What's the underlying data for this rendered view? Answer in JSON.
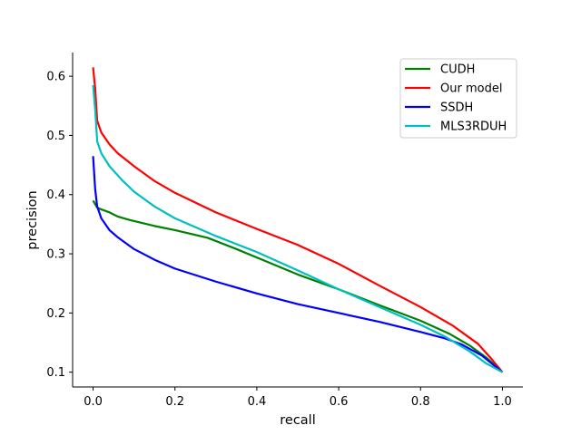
{
  "chart_data": {
    "type": "line",
    "xlabel": "recall",
    "ylabel": "precision",
    "xlim": [
      -0.05,
      1.05
    ],
    "ylim": [
      0.075,
      0.64
    ],
    "x_ticks": [
      0.0,
      0.2,
      0.4,
      0.6,
      0.8,
      1.0
    ],
    "x_tick_labels": [
      "0.0",
      "0.2",
      "0.4",
      "0.6",
      "0.8",
      "1.0"
    ],
    "y_ticks": [
      0.1,
      0.2,
      0.3,
      0.4,
      0.5,
      0.6
    ],
    "y_tick_labels": [
      "0.1",
      "0.2",
      "0.3",
      "0.4",
      "0.5",
      "0.6"
    ],
    "grid": false,
    "legend_position": "top-right",
    "series": [
      {
        "name": "CUDH",
        "color": "#008000",
        "points": [
          [
            0.0,
            0.39
          ],
          [
            0.01,
            0.378
          ],
          [
            0.02,
            0.375
          ],
          [
            0.04,
            0.37
          ],
          [
            0.06,
            0.363
          ],
          [
            0.09,
            0.357
          ],
          [
            0.15,
            0.347
          ],
          [
            0.2,
            0.34
          ],
          [
            0.28,
            0.327
          ],
          [
            0.35,
            0.308
          ],
          [
            0.42,
            0.288
          ],
          [
            0.5,
            0.265
          ],
          [
            0.6,
            0.24
          ],
          [
            0.7,
            0.213
          ],
          [
            0.8,
            0.187
          ],
          [
            0.87,
            0.165
          ],
          [
            0.92,
            0.145
          ],
          [
            0.96,
            0.125
          ],
          [
            1.0,
            0.1
          ]
        ]
      },
      {
        "name": "Our model",
        "color": "#ff0000",
        "points": [
          [
            0.0,
            0.615
          ],
          [
            0.005,
            0.58
          ],
          [
            0.01,
            0.525
          ],
          [
            0.02,
            0.505
          ],
          [
            0.04,
            0.485
          ],
          [
            0.06,
            0.47
          ],
          [
            0.1,
            0.448
          ],
          [
            0.15,
            0.423
          ],
          [
            0.2,
            0.403
          ],
          [
            0.3,
            0.37
          ],
          [
            0.4,
            0.342
          ],
          [
            0.5,
            0.315
          ],
          [
            0.6,
            0.283
          ],
          [
            0.7,
            0.246
          ],
          [
            0.8,
            0.21
          ],
          [
            0.88,
            0.178
          ],
          [
            0.94,
            0.148
          ],
          [
            0.97,
            0.125
          ],
          [
            1.0,
            0.1
          ]
        ]
      },
      {
        "name": "SSDH",
        "color": "#0000ff",
        "points": [
          [
            0.0,
            0.465
          ],
          [
            0.005,
            0.41
          ],
          [
            0.01,
            0.38
          ],
          [
            0.02,
            0.36
          ],
          [
            0.04,
            0.34
          ],
          [
            0.06,
            0.328
          ],
          [
            0.1,
            0.308
          ],
          [
            0.15,
            0.29
          ],
          [
            0.2,
            0.275
          ],
          [
            0.3,
            0.253
          ],
          [
            0.4,
            0.233
          ],
          [
            0.5,
            0.215
          ],
          [
            0.6,
            0.2
          ],
          [
            0.7,
            0.185
          ],
          [
            0.8,
            0.168
          ],
          [
            0.86,
            0.157
          ],
          [
            0.9,
            0.147
          ],
          [
            0.95,
            0.128
          ],
          [
            1.0,
            0.1
          ]
        ]
      },
      {
        "name": "MLS3RDUH",
        "color": "#00bfbf",
        "points": [
          [
            0.0,
            0.585
          ],
          [
            0.005,
            0.545
          ],
          [
            0.01,
            0.49
          ],
          [
            0.02,
            0.47
          ],
          [
            0.04,
            0.448
          ],
          [
            0.07,
            0.425
          ],
          [
            0.1,
            0.405
          ],
          [
            0.15,
            0.38
          ],
          [
            0.2,
            0.36
          ],
          [
            0.3,
            0.33
          ],
          [
            0.4,
            0.303
          ],
          [
            0.5,
            0.272
          ],
          [
            0.6,
            0.24
          ],
          [
            0.7,
            0.21
          ],
          [
            0.8,
            0.18
          ],
          [
            0.86,
            0.16
          ],
          [
            0.92,
            0.135
          ],
          [
            0.96,
            0.115
          ],
          [
            1.0,
            0.1
          ]
        ]
      }
    ]
  }
}
